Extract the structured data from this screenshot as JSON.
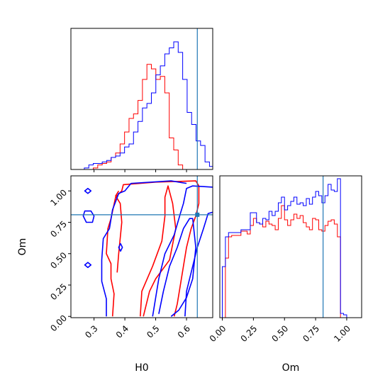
{
  "chart_data": {
    "type": "corner",
    "parameters": [
      "H0",
      "Om"
    ],
    "truth": {
      "H0": 0.635,
      "Om": 0.81
    },
    "series_colors": {
      "red": "#ff0000",
      "blue": "#0000ff",
      "truth": "#1f77b4"
    },
    "panels": [
      {
        "id": "h0-hist",
        "type": "histogram",
        "xlim": [
          0.225,
          0.685
        ],
        "ylim": [
          0,
          0.094
        ],
        "xticks": [
          0.3,
          0.4,
          0.5,
          0.6
        ],
        "yticks": [],
        "show_tick_labels": false,
        "truth_x": 0.635,
        "series": [
          {
            "color": "#ff0000",
            "edges": [
              0.225,
              0.2395,
              0.254,
              0.2685,
              0.283,
              0.2975,
              0.312,
              0.3265,
              0.341,
              0.3555,
              0.37,
              0.3845,
              0.399,
              0.4135,
              0.428,
              0.4425,
              0.457,
              0.4715,
              0.486,
              0.5005,
              0.515,
              0.5295,
              0.544,
              0.5585,
              0.573,
              0.5875,
              0.602,
              0.6165,
              0.631,
              0.6455,
              0.66,
              0.6745,
              0.685
            ],
            "values": [
              0,
              0,
              0,
              0,
              0,
              0.001,
              0.003,
              0.004,
              0.005,
              0.008,
              0.011,
              0.017,
              0.025,
              0.034,
              0.037,
              0.046,
              0.06,
              0.07,
              0.067,
              0.06,
              0.062,
              0.051,
              0.021,
              0.013,
              0.003,
              0,
              0,
              0,
              0,
              0,
              0,
              0
            ]
          },
          {
            "color": "#0000ff",
            "edges": [
              0.225,
              0.2395,
              0.254,
              0.2685,
              0.283,
              0.2975,
              0.312,
              0.3265,
              0.341,
              0.3555,
              0.37,
              0.3845,
              0.399,
              0.4135,
              0.428,
              0.4425,
              0.457,
              0.4715,
              0.486,
              0.5005,
              0.515,
              0.5295,
              0.544,
              0.5585,
              0.573,
              0.5875,
              0.602,
              0.6165,
              0.631,
              0.6455,
              0.66,
              0.6745,
              0.685
            ],
            "values": [
              0,
              0,
              0,
              0.001,
              0.003,
              0.004,
              0.004,
              0.005,
              0.006,
              0.008,
              0.009,
              0.011,
              0.015,
              0.017,
              0.025,
              0.032,
              0.041,
              0.044,
              0.051,
              0.063,
              0.069,
              0.077,
              0.081,
              0.085,
              0.078,
              0.06,
              0.038,
              0.03,
              0.019,
              0.016,
              0.005,
              0.002
            ]
          }
        ]
      },
      {
        "id": "contour",
        "type": "contour",
        "xlabel": "H0",
        "ylabel": "Om",
        "xlim": [
          0.225,
          0.685
        ],
        "ylim": [
          -0.01,
          1.12
        ],
        "xticks": [
          0.3,
          0.4,
          0.5,
          0.6
        ],
        "xtick_labels": [
          "0.3",
          "0.4",
          "0.5",
          "0.6"
        ],
        "yticks": [
          0.0,
          0.25,
          0.5,
          0.75,
          1.0
        ],
        "ytick_labels": [
          "0.00",
          "0.25",
          "0.50",
          "0.75",
          "1.00"
        ],
        "truth": [
          0.635,
          0.81
        ],
        "contours": [
          {
            "color": "#ff0000",
            "points": [
              [
                0.36,
                0.0
              ],
              [
                0.365,
                0.18
              ],
              [
                0.355,
                0.3
              ],
              [
                0.355,
                0.42
              ],
              [
                0.34,
                0.5
              ],
              [
                0.345,
                0.7
              ],
              [
                0.355,
                0.78
              ],
              [
                0.37,
                0.95
              ],
              [
                0.39,
                1.0
              ],
              [
                0.395,
                1.05
              ],
              [
                0.5,
                1.07
              ],
              [
                0.63,
                1.08
              ],
              [
                0.64,
                1.04
              ],
              [
                0.64,
                0.9
              ],
              [
                0.63,
                0.8
              ],
              [
                0.615,
                0.7
              ],
              [
                0.6,
                0.55
              ],
              [
                0.59,
                0.4
              ],
              [
                0.58,
                0.25
              ],
              [
                0.57,
                0.1
              ],
              [
                0.56,
                0.0
              ]
            ]
          },
          {
            "color": "#ff0000",
            "points": [
              [
                0.45,
                0.0
              ],
              [
                0.455,
                0.2
              ],
              [
                0.49,
                0.4
              ],
              [
                0.52,
                0.6
              ],
              [
                0.53,
                0.8
              ],
              [
                0.53,
                0.95
              ],
              [
                0.54,
                1.04
              ],
              [
                0.555,
                0.9
              ],
              [
                0.565,
                0.7
              ],
              [
                0.545,
                0.45
              ],
              [
                0.5,
                0.3
              ],
              [
                0.48,
                0.2
              ],
              [
                0.46,
                0.0
              ]
            ]
          },
          {
            "color": "#ff0000",
            "points": [
              [
                0.375,
                0.35
              ],
              [
                0.38,
                0.5
              ],
              [
                0.39,
                0.75
              ],
              [
                0.385,
                0.9
              ],
              [
                0.37,
                0.96
              ],
              [
                0.38,
                1.0
              ]
            ]
          },
          {
            "color": "#0000ff",
            "points": [
              [
                0.34,
                0.0
              ],
              [
                0.34,
                0.14
              ],
              [
                0.325,
                0.28
              ],
              [
                0.325,
                0.45
              ],
              [
                0.33,
                0.62
              ],
              [
                0.35,
                0.7
              ],
              [
                0.36,
                0.85
              ],
              [
                0.38,
                0.98
              ],
              [
                0.4,
                1.0
              ],
              [
                0.42,
                1.06
              ],
              [
                0.55,
                1.08
              ],
              [
                0.6,
                1.06
              ]
            ]
          },
          {
            "color": "#0000ff",
            "points": [
              [
                0.49,
                0.0
              ],
              [
                0.5,
                0.15
              ],
              [
                0.51,
                0.3
              ],
              [
                0.53,
                0.5
              ],
              [
                0.56,
                0.65
              ],
              [
                0.58,
                0.82
              ],
              [
                0.59,
                0.9
              ],
              [
                0.6,
                1.02
              ],
              [
                0.62,
                1.04
              ],
              [
                0.685,
                1.03
              ]
            ]
          },
          {
            "color": "#0000ff",
            "points": [
              [
                0.51,
                0.02
              ],
              [
                0.525,
                0.2
              ],
              [
                0.545,
                0.4
              ],
              [
                0.57,
                0.55
              ],
              [
                0.59,
                0.7
              ],
              [
                0.61,
                0.78
              ],
              [
                0.62,
                0.78
              ],
              [
                0.63,
                0.55
              ],
              [
                0.62,
                0.3
              ],
              [
                0.6,
                0.15
              ],
              [
                0.575,
                0.05
              ],
              [
                0.55,
                0.0
              ]
            ]
          },
          {
            "color": "#0000ff",
            "points": [
              [
                0.595,
                0.0
              ],
              [
                0.6,
                0.2
              ],
              [
                0.615,
                0.35
              ],
              [
                0.635,
                0.55
              ],
              [
                0.655,
                0.7
              ],
              [
                0.67,
                0.82
              ],
              [
                0.685,
                0.83
              ]
            ]
          },
          {
            "color": "#0000ff",
            "closed": true,
            "points": [
              [
                0.265,
                0.8
              ],
              [
                0.275,
                0.75
              ],
              [
                0.295,
                0.75
              ],
              [
                0.3,
                0.8
              ],
              [
                0.29,
                0.84
              ],
              [
                0.27,
                0.84
              ]
            ]
          },
          {
            "color": "#0000ff",
            "closed": true,
            "points": [
              [
                0.27,
                1.0
              ],
              [
                0.28,
                0.98
              ],
              [
                0.29,
                1.0
              ],
              [
                0.28,
                1.02
              ]
            ]
          },
          {
            "color": "#0000ff",
            "closed": true,
            "points": [
              [
                0.27,
                0.41
              ],
              [
                0.28,
                0.39
              ],
              [
                0.29,
                0.41
              ],
              [
                0.28,
                0.43
              ]
            ]
          },
          {
            "color": "#0000ff",
            "closed": true,
            "points": [
              [
                0.38,
                0.55
              ],
              [
                0.386,
                0.52
              ],
              [
                0.392,
                0.55
              ],
              [
                0.386,
                0.58
              ]
            ]
          }
        ]
      },
      {
        "id": "om-hist",
        "type": "histogram",
        "xlabel": "Om",
        "xlim": [
          -0.02,
          1.12
        ],
        "ylim": [
          0,
          1
        ],
        "xticks": [
          0.0,
          0.25,
          0.5,
          0.75,
          1.0
        ],
        "xtick_labels": [
          "0.00",
          "0.25",
          "0.50",
          "0.75",
          "1.00"
        ],
        "yticks": [],
        "truth_x": 0.81,
        "series": [
          {
            "color": "#ff0000",
            "edges": [
              0.0,
              0.025,
              0.05,
              0.075,
              0.1,
              0.125,
              0.15,
              0.175,
              0.2,
              0.225,
              0.25,
              0.275,
              0.3,
              0.325,
              0.35,
              0.375,
              0.4,
              0.425,
              0.45,
              0.475,
              0.5,
              0.525,
              0.55,
              0.575,
              0.6,
              0.625,
              0.65,
              0.675,
              0.7,
              0.725,
              0.75,
              0.775,
              0.8,
              0.825,
              0.85,
              0.875,
              0.9,
              0.925,
              0.95,
              0.975,
              1.0
            ],
            "values": [
              0,
              0.42,
              0.57,
              0.58,
              0.58,
              0.58,
              0.61,
              0.61,
              0.59,
              0.65,
              0.7,
              0.67,
              0.66,
              0.64,
              0.68,
              0.66,
              0.65,
              0.62,
              0.7,
              0.79,
              0.69,
              0.65,
              0.69,
              0.73,
              0.7,
              0.72,
              0.67,
              0.64,
              0.62,
              0.7,
              0.69,
              0.62,
              0.61,
              0.65,
              0.68,
              0.69,
              0.66,
              0.57,
              0.0,
              0.0
            ]
          },
          {
            "color": "#0000ff",
            "edges": [
              0.0,
              0.025,
              0.05,
              0.075,
              0.1,
              0.125,
              0.15,
              0.175,
              0.2,
              0.225,
              0.25,
              0.275,
              0.3,
              0.325,
              0.35,
              0.375,
              0.4,
              0.425,
              0.45,
              0.475,
              0.5,
              0.525,
              0.55,
              0.575,
              0.6,
              0.625,
              0.65,
              0.675,
              0.7,
              0.725,
              0.75,
              0.775,
              0.8,
              0.825,
              0.85,
              0.875,
              0.9,
              0.925,
              0.95,
              0.975,
              1.0
            ],
            "values": [
              0.36,
              0.57,
              0.6,
              0.6,
              0.6,
              0.6,
              0.62,
              0.62,
              0.62,
              0.74,
              0.74,
              0.67,
              0.66,
              0.7,
              0.69,
              0.75,
              0.72,
              0.75,
              0.81,
              0.85,
              0.76,
              0.79,
              0.82,
              0.85,
              0.8,
              0.81,
              0.79,
              0.84,
              0.8,
              0.85,
              0.89,
              0.86,
              0.81,
              0.86,
              0.94,
              0.9,
              0.89,
              0.98,
              0.03,
              0.02
            ]
          }
        ]
      }
    ]
  }
}
